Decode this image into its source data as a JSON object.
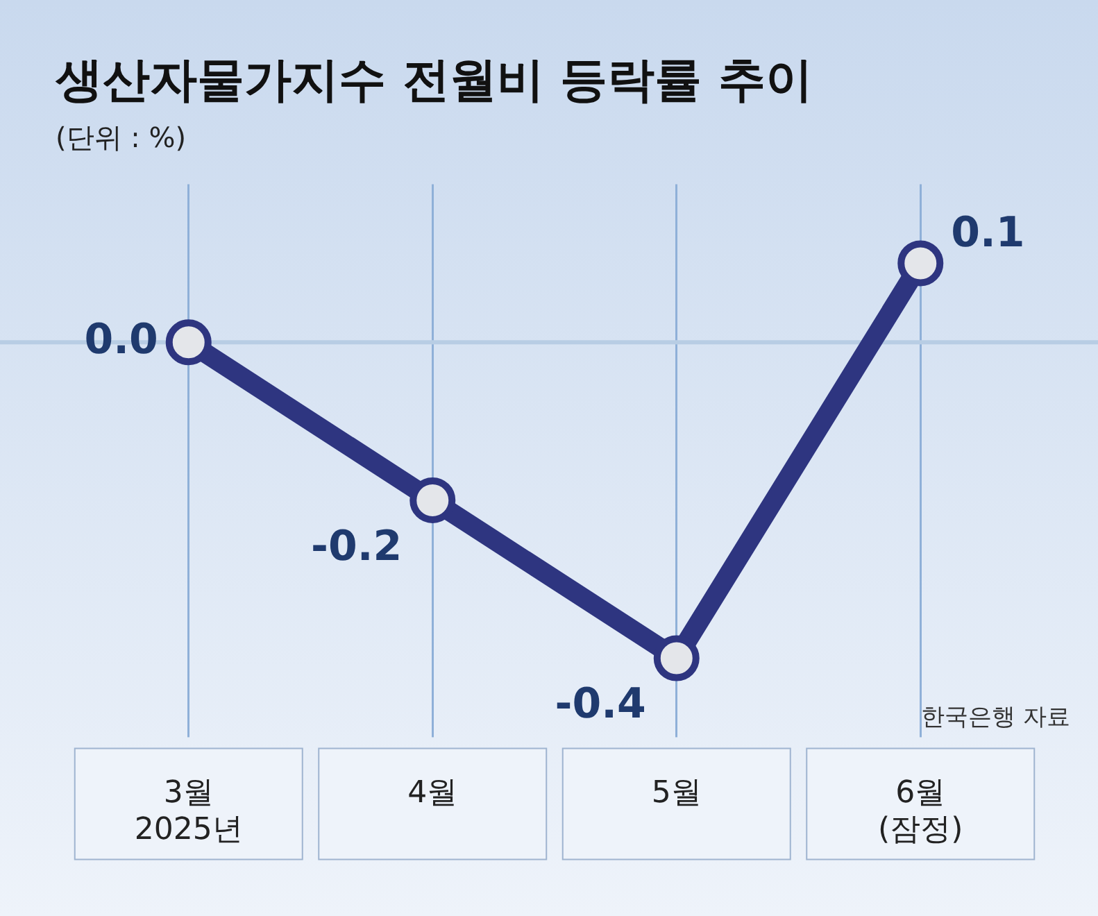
{
  "chart_data": {
    "type": "line",
    "title": "생산자물가지수 전월비 등락률 추이",
    "subtitle": "(단위 : %)",
    "categories": [
      "3월\n2025년",
      "4월",
      "5월",
      "6월\n(잠정)"
    ],
    "series": [
      {
        "color": "#2e3580",
        "values": [
          0.0,
          -0.2,
          -0.4,
          0.1
        ],
        "value_labels": [
          "0.0",
          "-0.2",
          "-0.4",
          "0.1"
        ]
      }
    ],
    "ref_lines": [
      {
        "axis": "y",
        "value": 0,
        "color": "#b8cde4"
      }
    ],
    "annotations": [
      "한국은행 자료"
    ],
    "grid": "x",
    "marker": "circle",
    "line_style": "solid",
    "legend": false
  }
}
